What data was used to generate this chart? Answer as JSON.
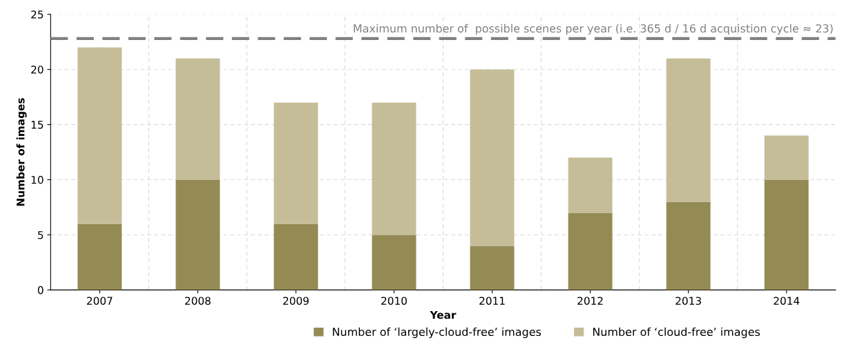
{
  "chart_data": {
    "type": "bar",
    "stacked": true,
    "xlabel": "Year",
    "ylabel": "Number of images",
    "categories": [
      "2007",
      "2008",
      "2009",
      "2010",
      "2011",
      "2012",
      "2013",
      "2014"
    ],
    "series": [
      {
        "name": "Number of ‘largely-cloud-free’ images",
        "color": "#948a54",
        "values": [
          6,
          10,
          6,
          5,
          4,
          7,
          8,
          10
        ]
      },
      {
        "name": "Number of ‘cloud-free’ images",
        "color": "#c4bd97",
        "values": [
          16,
          11,
          11,
          12,
          16,
          5,
          13,
          4
        ]
      }
    ],
    "ylim": [
      0,
      25
    ],
    "yticks": [
      0,
      5,
      10,
      15,
      20,
      25
    ],
    "grid": true,
    "legend": "bottom",
    "ref_lines": [
      {
        "axis": "y",
        "value": 22.8,
        "label": "Maximum number of  possible scenes per year (i.e. 365 d / 16 d acquistion cycle ≈ 23)",
        "color": "#808080",
        "line_style": "dashed"
      }
    ]
  }
}
